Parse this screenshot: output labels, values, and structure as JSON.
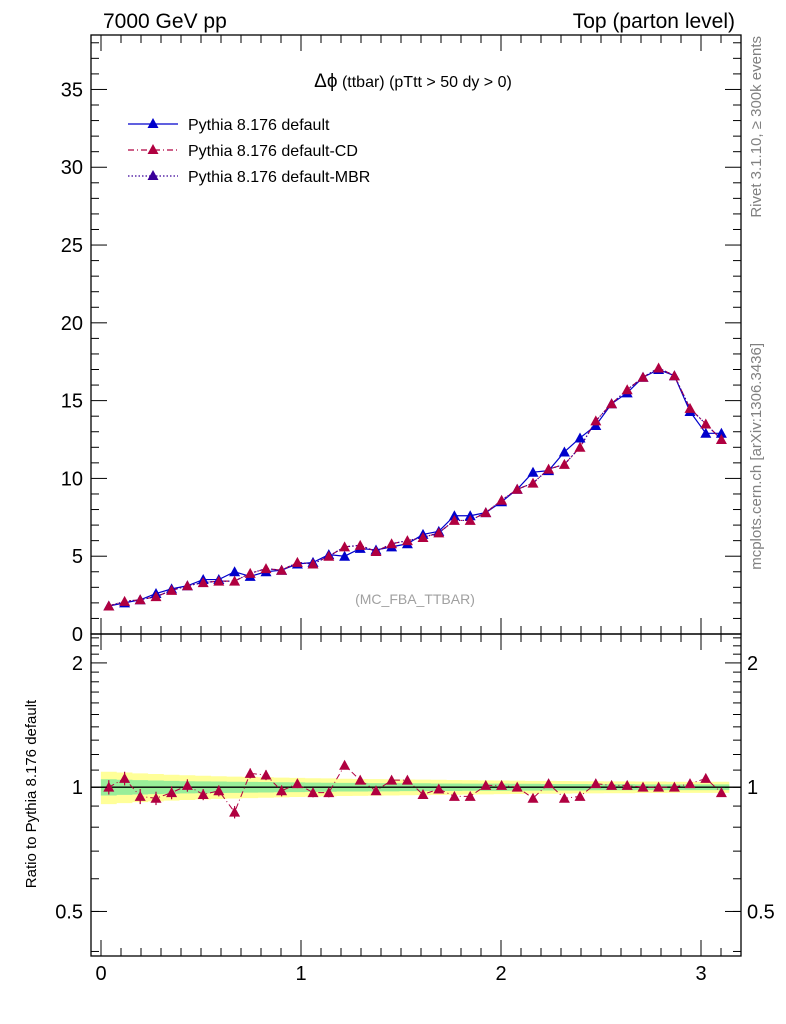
{
  "header": {
    "left": "7000 GeV pp",
    "right": "Top (parton level)"
  },
  "side_labels": {
    "rivet": "Rivet 3.1.10, ≥ 300k events",
    "mcplots": "mcplots.cern.ch [arXiv:1306.3436]"
  },
  "watermark": "(MC_FBA_TTBAR)",
  "chart_data": [
    {
      "type": "line",
      "title": "Δϕ (ttbar) (pTtt > 50 dy > 0)",
      "title_symbol": "Δϕ",
      "title_rest": " (ttbar) (pTtt > 50 dy > 0)",
      "xlabel": "",
      "ylabel": "",
      "xlim": [
        -0.05,
        3.2
      ],
      "ylim": [
        0,
        38.5
      ],
      "yticks": [
        0,
        5,
        10,
        15,
        20,
        25,
        30,
        35
      ],
      "ytick_labels": [
        "0",
        "5",
        "10",
        "15",
        "20",
        "25",
        "30",
        "35"
      ],
      "legend_position": "top-left",
      "x": [
        0.039,
        0.118,
        0.196,
        0.275,
        0.353,
        0.432,
        0.511,
        0.589,
        0.668,
        0.746,
        0.825,
        0.903,
        0.982,
        1.06,
        1.139,
        1.218,
        1.296,
        1.375,
        1.453,
        1.532,
        1.61,
        1.689,
        1.767,
        1.846,
        1.924,
        2.003,
        2.081,
        2.16,
        2.238,
        2.317,
        2.395,
        2.474,
        2.553,
        2.631,
        2.71,
        2.788,
        2.867,
        2.945,
        3.024,
        3.102
      ],
      "series": [
        {
          "name": "Pythia 8.176 default",
          "color": "#0000cc",
          "style": "solid",
          "values": [
            1.8,
            2.0,
            2.2,
            2.6,
            2.9,
            3.1,
            3.5,
            3.5,
            4.0,
            3.7,
            4.0,
            4.1,
            4.5,
            4.6,
            5.1,
            5.0,
            5.5,
            5.4,
            5.6,
            5.8,
            6.4,
            6.6,
            7.6,
            7.6,
            7.8,
            8.5,
            9.3,
            10.4,
            10.5,
            11.7,
            12.6,
            13.4,
            14.8,
            15.5,
            16.5,
            17.0,
            16.6,
            14.3,
            12.9,
            12.9
          ]
        },
        {
          "name": "Pythia 8.176 default-CD",
          "color": "#b00040",
          "style": "dashdot",
          "values": [
            1.8,
            2.1,
            2.2,
            2.4,
            2.8,
            3.1,
            3.3,
            3.4,
            3.4,
            3.9,
            4.2,
            4.1,
            4.6,
            4.5,
            5.0,
            5.6,
            5.7,
            5.3,
            5.8,
            6.0,
            6.2,
            6.5,
            7.3,
            7.3,
            7.8,
            8.6,
            9.3,
            9.7,
            10.6,
            10.9,
            12.0,
            13.7,
            14.8,
            15.7,
            16.5,
            17.1,
            16.6,
            14.5,
            13.5,
            12.5
          ]
        },
        {
          "name": "Pythia 8.176 default-MBR",
          "color": "#3a0099",
          "style": "dotted",
          "values": [
            1.8,
            2.1,
            2.2,
            2.4,
            2.8,
            3.1,
            3.3,
            3.4,
            3.4,
            3.9,
            4.2,
            4.1,
            4.6,
            4.5,
            5.0,
            5.6,
            5.7,
            5.3,
            5.8,
            6.0,
            6.2,
            6.5,
            7.3,
            7.3,
            7.8,
            8.6,
            9.3,
            9.7,
            10.6,
            10.9,
            12.0,
            13.7,
            14.8,
            15.7,
            16.5,
            17.1,
            16.6,
            14.5,
            13.5,
            12.5
          ]
        }
      ]
    },
    {
      "type": "line",
      "title": "",
      "xlabel": "",
      "ylabel": "Ratio to Pythia 8.176 default",
      "xlim": [
        -0.05,
        3.2
      ],
      "ylim": [
        0.39,
        2.35
      ],
      "yscale": "log",
      "xticks": [
        0,
        1,
        2,
        3
      ],
      "xtick_labels": [
        "0",
        "1",
        "2",
        "3"
      ],
      "yticks": [
        0.5,
        1,
        2
      ],
      "ytick_labels": [
        "0.5",
        "1",
        "2"
      ],
      "reference_line": 1,
      "band_inner": [
        0.045,
        0.042,
        0.04,
        0.038,
        0.036,
        0.034,
        0.033,
        0.032,
        0.031,
        0.03,
        0.029,
        0.028,
        0.027,
        0.026,
        0.025,
        0.024,
        0.024,
        0.023,
        0.023,
        0.022,
        0.022,
        0.021,
        0.021,
        0.02,
        0.02,
        0.02,
        0.019,
        0.019,
        0.018,
        0.018,
        0.018,
        0.017,
        0.017,
        0.017,
        0.016,
        0.016,
        0.016,
        0.016,
        0.016,
        0.016
      ],
      "band_outer": [
        0.09,
        0.085,
        0.08,
        0.076,
        0.072,
        0.069,
        0.066,
        0.063,
        0.061,
        0.059,
        0.057,
        0.055,
        0.053,
        0.051,
        0.05,
        0.048,
        0.047,
        0.046,
        0.045,
        0.044,
        0.043,
        0.042,
        0.041,
        0.04,
        0.039,
        0.038,
        0.037,
        0.036,
        0.036,
        0.035,
        0.034,
        0.034,
        0.033,
        0.033,
        0.032,
        0.032,
        0.031,
        0.031,
        0.031,
        0.031
      ],
      "series": [
        {
          "name": "Pythia 8.176 default-CD",
          "color": "#b00040",
          "values": [
            1.0,
            1.05,
            0.95,
            0.94,
            0.97,
            1.01,
            0.96,
            0.98,
            0.87,
            1.08,
            1.07,
            0.98,
            1.02,
            0.97,
            0.97,
            1.13,
            1.04,
            0.98,
            1.04,
            1.04,
            0.96,
            0.99,
            0.95,
            0.95,
            1.01,
            1.01,
            1.0,
            0.94,
            1.02,
            0.94,
            0.95,
            1.02,
            1.01,
            1.01,
            1.0,
            1.0,
            1.0,
            1.02,
            1.05,
            0.97
          ],
          "errors": [
            0.04,
            0.04,
            0.04,
            0.035,
            0.035,
            0.035,
            0.03,
            0.03,
            0.03,
            0.03,
            0.03,
            0.03,
            0.025,
            0.025,
            0.025,
            0.025,
            0.025,
            0.02,
            0.02,
            0.02,
            0.02,
            0.02,
            0.02,
            0.02,
            0.015,
            0.015,
            0.015,
            0.015,
            0.015,
            0.015,
            0.015,
            0.012,
            0.012,
            0.012,
            0.012,
            0.01,
            0.01,
            0.012,
            0.012,
            0.012
          ]
        }
      ]
    }
  ]
}
